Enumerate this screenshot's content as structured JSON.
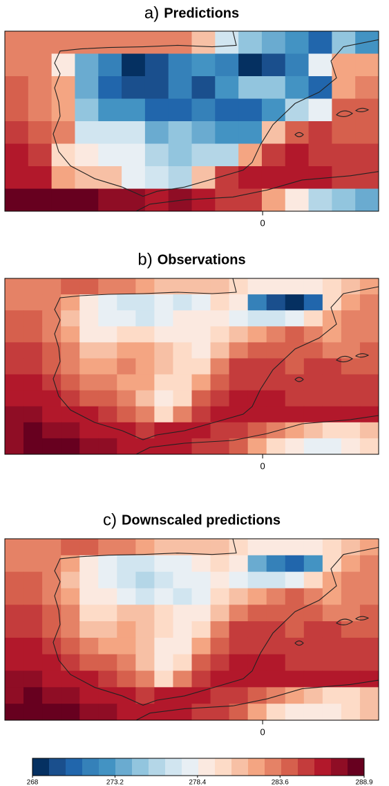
{
  "chart_data": [
    {
      "type": "heatmap",
      "label": "a)",
      "title": "Predictions",
      "xlim": [
        -10,
        4.5
      ],
      "xticks": [
        0
      ],
      "values": [
        [
          283.2,
          283.2,
          283.2,
          283.2,
          283.2,
          283.2,
          283.2,
          283.2,
          281.1,
          276.9,
          274.8,
          273.7,
          272.7,
          270.6,
          274.8,
          272.7
        ],
        [
          283.2,
          283.2,
          279.0,
          273.7,
          271.7,
          268.5,
          269.6,
          271.7,
          272.7,
          271.7,
          268.5,
          269.6,
          271.7,
          277.9,
          282.1,
          282.1
        ],
        [
          284.2,
          283.2,
          282.1,
          273.7,
          270.6,
          269.6,
          269.6,
          271.7,
          269.6,
          272.7,
          274.8,
          274.8,
          272.7,
          270.6,
          282.1,
          283.2
        ],
        [
          284.2,
          283.2,
          282.1,
          274.8,
          272.7,
          272.7,
          270.6,
          270.6,
          271.7,
          270.6,
          270.6,
          272.7,
          275.8,
          277.9,
          284.2,
          284.2
        ],
        [
          285.3,
          284.2,
          283.2,
          276.9,
          276.9,
          276.9,
          273.7,
          274.8,
          273.7,
          272.7,
          272.7,
          281.1,
          284.2,
          285.3,
          284.2,
          284.2
        ],
        [
          286.3,
          285.3,
          280.0,
          279.0,
          277.9,
          277.9,
          275.8,
          274.8,
          275.8,
          275.8,
          282.1,
          285.3,
          286.3,
          285.3,
          285.3,
          285.3
        ],
        [
          286.3,
          286.3,
          282.1,
          281.1,
          281.1,
          277.9,
          276.9,
          275.8,
          281.1,
          285.3,
          286.3,
          286.3,
          286.3,
          286.3,
          285.3,
          285.3
        ],
        [
          288.4,
          288.4,
          288.4,
          288.4,
          287.4,
          287.4,
          286.3,
          287.4,
          286.3,
          285.3,
          285.3,
          282.1,
          279.0,
          275.8,
          274.8,
          273.7
        ]
      ]
    },
    {
      "type": "heatmap",
      "label": "b)",
      "title": "Observations",
      "xlim": [
        -10,
        4.5
      ],
      "xticks": [
        0
      ],
      "values": [
        [
          283.2,
          283.2,
          283.2,
          284.2,
          284.2,
          283.2,
          283.2,
          282.1,
          281.1,
          281.1,
          281.1,
          281.1,
          280.0,
          279.0,
          279.0,
          279.0,
          279.0,
          280.0,
          281.1,
          282.1
        ],
        [
          283.2,
          283.2,
          283.2,
          282.1,
          279.0,
          277.9,
          276.9,
          276.9,
          277.9,
          276.9,
          277.9,
          280.0,
          279.0,
          271.7,
          269.6,
          268.5,
          270.6,
          280.0,
          282.1,
          283.2
        ],
        [
          284.2,
          284.2,
          283.2,
          281.1,
          279.0,
          277.9,
          277.9,
          276.9,
          277.9,
          279.0,
          279.0,
          279.0,
          277.9,
          276.9,
          276.9,
          277.9,
          280.0,
          282.1,
          283.2,
          283.2
        ],
        [
          284.2,
          284.2,
          283.2,
          282.1,
          279.0,
          279.0,
          280.0,
          280.0,
          279.0,
          279.0,
          279.0,
          280.0,
          281.1,
          282.1,
          283.2,
          284.2,
          283.2,
          282.1,
          283.2,
          283.2
        ],
        [
          285.3,
          285.3,
          284.2,
          283.2,
          281.1,
          281.1,
          282.1,
          282.1,
          281.1,
          280.0,
          279.0,
          281.1,
          283.2,
          284.2,
          284.2,
          284.2,
          284.2,
          283.2,
          283.2,
          284.2
        ],
        [
          285.3,
          285.3,
          284.2,
          283.2,
          282.1,
          282.1,
          283.2,
          282.1,
          281.1,
          280.0,
          280.0,
          283.2,
          285.3,
          285.3,
          285.3,
          284.2,
          285.3,
          285.3,
          284.2,
          284.2
        ],
        [
          286.3,
          286.3,
          285.3,
          284.2,
          283.2,
          283.2,
          282.1,
          282.1,
          280.0,
          280.0,
          282.1,
          284.2,
          285.3,
          285.3,
          285.3,
          285.3,
          285.3,
          285.3,
          285.3,
          285.3
        ],
        [
          286.3,
          286.3,
          286.3,
          285.3,
          284.2,
          284.2,
          283.2,
          281.1,
          279.0,
          280.0,
          284.2,
          285.3,
          286.3,
          286.3,
          286.3,
          285.3,
          285.3,
          285.3,
          285.3,
          285.3
        ],
        [
          287.4,
          287.4,
          286.3,
          286.3,
          286.3,
          285.3,
          284.2,
          283.2,
          280.0,
          283.2,
          285.3,
          286.3,
          286.3,
          286.3,
          286.3,
          286.3,
          286.3,
          286.3,
          286.3,
          286.3
        ],
        [
          287.4,
          288.4,
          287.4,
          287.4,
          286.3,
          286.3,
          286.3,
          285.3,
          286.3,
          286.3,
          286.3,
          285.3,
          285.3,
          284.2,
          283.2,
          282.1,
          281.1,
          280.0,
          280.0,
          281.1
        ],
        [
          287.4,
          288.4,
          288.4,
          288.4,
          287.4,
          287.4,
          286.3,
          286.3,
          286.3,
          286.3,
          285.3,
          285.3,
          284.2,
          282.1,
          280.0,
          279.0,
          277.9,
          277.9,
          279.0,
          280.0
        ]
      ]
    },
    {
      "type": "heatmap",
      "label": "c)",
      "title": "Downscaled predictions",
      "xlim": [
        -10,
        4.5
      ],
      "xticks": [
        0
      ],
      "values": [
        [
          283.2,
          283.2,
          283.2,
          284.2,
          284.2,
          283.2,
          283.2,
          282.1,
          281.1,
          281.1,
          281.1,
          281.1,
          280.0,
          279.0,
          279.0,
          279.0,
          279.0,
          280.0,
          281.1,
          282.1
        ],
        [
          283.2,
          283.2,
          283.2,
          282.1,
          279.0,
          277.9,
          276.9,
          276.9,
          277.9,
          277.9,
          279.0,
          280.0,
          279.0,
          273.7,
          271.7,
          270.6,
          272.7,
          280.0,
          282.1,
          283.2
        ],
        [
          284.2,
          284.2,
          283.2,
          281.1,
          279.0,
          277.9,
          276.9,
          275.8,
          276.9,
          277.9,
          277.9,
          279.0,
          277.9,
          276.9,
          276.9,
          277.9,
          280.0,
          282.1,
          283.2,
          283.2
        ],
        [
          284.2,
          284.2,
          283.2,
          282.1,
          279.0,
          279.0,
          277.9,
          276.9,
          277.9,
          276.9,
          277.9,
          280.0,
          281.1,
          282.1,
          283.2,
          284.2,
          283.2,
          282.1,
          283.2,
          283.2
        ],
        [
          285.3,
          285.3,
          284.2,
          283.2,
          280.0,
          280.0,
          281.1,
          281.1,
          280.0,
          279.0,
          279.0,
          281.1,
          283.2,
          284.2,
          284.2,
          284.2,
          284.2,
          283.2,
          283.2,
          284.2
        ],
        [
          285.3,
          285.3,
          284.2,
          283.2,
          281.1,
          281.1,
          282.1,
          281.1,
          280.0,
          279.0,
          280.0,
          283.2,
          285.3,
          285.3,
          285.3,
          284.2,
          285.3,
          285.3,
          284.2,
          284.2
        ],
        [
          286.3,
          286.3,
          285.3,
          284.2,
          283.2,
          282.1,
          282.1,
          281.1,
          279.0,
          279.0,
          282.1,
          284.2,
          285.3,
          285.3,
          285.3,
          285.3,
          285.3,
          285.3,
          285.3,
          285.3
        ],
        [
          286.3,
          286.3,
          286.3,
          285.3,
          284.2,
          284.2,
          283.2,
          281.1,
          279.0,
          280.0,
          284.2,
          285.3,
          286.3,
          286.3,
          286.3,
          285.3,
          285.3,
          285.3,
          285.3,
          285.3
        ],
        [
          287.4,
          287.4,
          286.3,
          286.3,
          286.3,
          285.3,
          284.2,
          283.2,
          280.0,
          283.2,
          285.3,
          286.3,
          286.3,
          286.3,
          286.3,
          286.3,
          286.3,
          286.3,
          286.3,
          286.3
        ],
        [
          287.4,
          288.4,
          287.4,
          287.4,
          286.3,
          286.3,
          286.3,
          285.3,
          286.3,
          286.3,
          286.3,
          285.3,
          285.3,
          284.2,
          283.2,
          282.1,
          281.1,
          280.0,
          280.0,
          281.1
        ],
        [
          288.4,
          288.4,
          288.4,
          288.4,
          287.4,
          287.4,
          286.3,
          286.3,
          286.3,
          286.3,
          285.3,
          285.3,
          284.2,
          282.1,
          280.0,
          279.0,
          279.0,
          279.0,
          280.0,
          281.1
        ]
      ]
    }
  ],
  "colorbar": {
    "lim": [
      268,
      288.9
    ],
    "ticks": [
      268,
      273.2,
      278.4,
      283.6,
      288.9
    ],
    "colors": [
      "#053061",
      "#1a4f8d",
      "#2166ac",
      "#3581b9",
      "#4393c3",
      "#6aabd0",
      "#92c5de",
      "#b4d6e7",
      "#d1e5f0",
      "#e8eff4",
      "#fbe9e0",
      "#fddbc7",
      "#f7c0a5",
      "#f4a582",
      "#e58266",
      "#d6604d",
      "#c43c3c",
      "#b2182b",
      "#8f0d25",
      "#67001f"
    ]
  }
}
